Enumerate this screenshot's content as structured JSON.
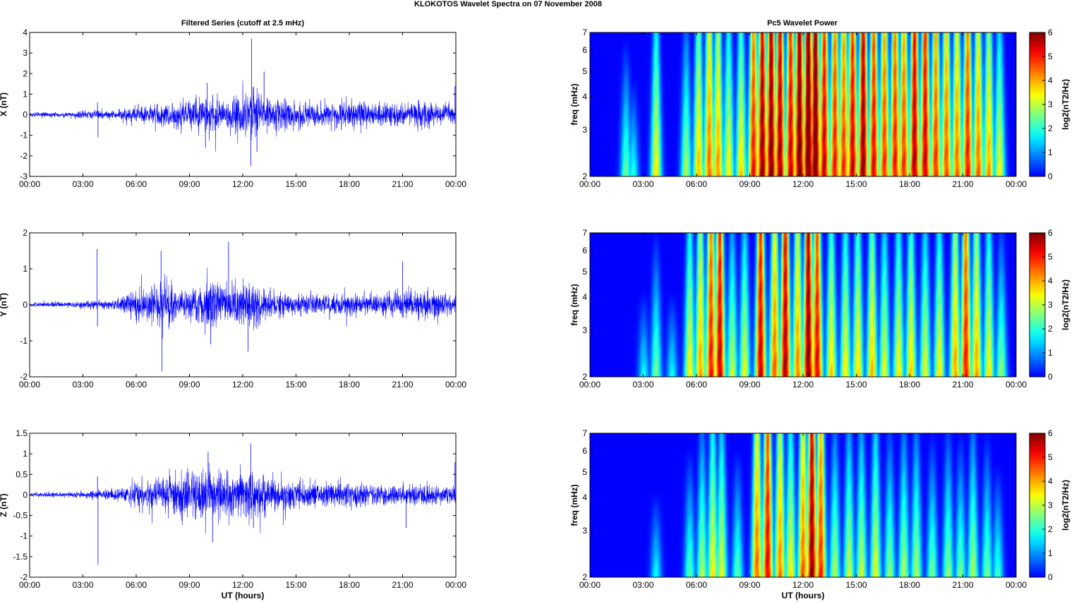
{
  "figure": {
    "title": "KLOKOTOS Wavelet Spectra on 07 November  2008",
    "left_title": "Filtered Series (cutoff at 2.5 mHz)",
    "right_title": "Pc5 Wavelet Power"
  },
  "chart_data": [
    {
      "type": "line",
      "component": "X",
      "ylabel": "X (nT)",
      "xlabel": "",
      "ylim": [
        -3,
        4
      ],
      "yticks": [
        -3,
        -2,
        -1,
        0,
        1,
        2,
        3,
        4
      ],
      "xticks": [
        "00:00",
        "03:00",
        "06:00",
        "09:00",
        "12:00",
        "15:00",
        "18:00",
        "21:00",
        "00:00"
      ],
      "series_color": "#0000ff",
      "envelope_hours": [
        0,
        2,
        3.8,
        4.5,
        6,
        7.5,
        9,
        10,
        11,
        12,
        12.5,
        13.5,
        15,
        16.5,
        18,
        19.5,
        21,
        22,
        23,
        24
      ],
      "envelope_amp": [
        0.1,
        0.1,
        0.2,
        0.15,
        0.35,
        0.5,
        0.7,
        0.9,
        0.6,
        1.0,
        1.3,
        0.7,
        0.55,
        0.5,
        0.55,
        0.5,
        0.45,
        0.6,
        0.45,
        0.4
      ],
      "spikes": [
        {
          "t": 3.82,
          "v": 0.6
        },
        {
          "t": 3.85,
          "v": -1.1
        },
        {
          "t": 10.0,
          "v": 1.55
        },
        {
          "t": 9.9,
          "v": -1.6
        },
        {
          "t": 12.5,
          "v": 3.7
        },
        {
          "t": 12.45,
          "v": -2.5
        },
        {
          "t": 12.8,
          "v": -1.8
        },
        {
          "t": 13.2,
          "v": 2.1
        },
        {
          "t": 23.95,
          "v": 1.4
        }
      ]
    },
    {
      "type": "line",
      "component": "Y",
      "ylabel": "Y (nT)",
      "xlabel": "",
      "ylim": [
        -2,
        2
      ],
      "yticks": [
        -2,
        -1,
        0,
        1,
        2
      ],
      "xticks": [
        "00:00",
        "03:00",
        "06:00",
        "09:00",
        "12:00",
        "15:00",
        "18:00",
        "21:00",
        "00:00"
      ],
      "series_color": "#0000ff",
      "envelope_hours": [
        0,
        2,
        3.8,
        4.5,
        6,
        7,
        7.5,
        8.5,
        10,
        11,
        12,
        12.5,
        13.5,
        15,
        16.5,
        18,
        19.5,
        21,
        22,
        23,
        24
      ],
      "envelope_amp": [
        0.06,
        0.06,
        0.12,
        0.1,
        0.35,
        0.45,
        0.6,
        0.3,
        0.6,
        0.5,
        0.6,
        0.55,
        0.3,
        0.3,
        0.25,
        0.3,
        0.25,
        0.35,
        0.4,
        0.3,
        0.25
      ],
      "spikes": [
        {
          "t": 3.8,
          "v": 1.55
        },
        {
          "t": 3.82,
          "v": -0.6
        },
        {
          "t": 7.4,
          "v": 1.5
        },
        {
          "t": 7.45,
          "v": -1.85
        },
        {
          "t": 11.2,
          "v": 1.75
        },
        {
          "t": 10.2,
          "v": -1.1
        },
        {
          "t": 12.3,
          "v": -1.3
        },
        {
          "t": 21.0,
          "v": 1.2
        }
      ]
    },
    {
      "type": "line",
      "component": "Z",
      "ylabel": "Z (nT)",
      "xlabel": "UT (hours)",
      "ylim": [
        -2,
        1.5
      ],
      "yticks": [
        -2,
        -1.5,
        -1,
        -0.5,
        0,
        0.5,
        1,
        1.5
      ],
      "xticks": [
        "00:00",
        "03:00",
        "06:00",
        "09:00",
        "12:00",
        "15:00",
        "18:00",
        "21:00",
        "00:00"
      ],
      "series_color": "#0000ff",
      "envelope_hours": [
        0,
        2,
        3.8,
        4.5,
        6,
        7.5,
        9,
        10,
        11,
        12,
        12.5,
        13.5,
        15,
        16.5,
        18,
        19.5,
        21,
        22,
        23,
        24
      ],
      "envelope_amp": [
        0.05,
        0.05,
        0.1,
        0.1,
        0.25,
        0.35,
        0.45,
        0.6,
        0.45,
        0.6,
        0.55,
        0.35,
        0.3,
        0.25,
        0.25,
        0.25,
        0.2,
        0.25,
        0.2,
        0.2
      ],
      "spikes": [
        {
          "t": 3.85,
          "v": -1.7
        },
        {
          "t": 3.82,
          "v": 0.45
        },
        {
          "t": 10.05,
          "v": 1.05
        },
        {
          "t": 10.3,
          "v": -1.15
        },
        {
          "t": 12.45,
          "v": 1.25
        },
        {
          "t": 12.6,
          "v": -0.8
        },
        {
          "t": 21.2,
          "v": -0.8
        },
        {
          "t": 23.95,
          "v": 0.8
        }
      ]
    },
    {
      "type": "heatmap",
      "component": "X",
      "ylabel": "freq (mHz)",
      "xlabel": "",
      "yscale": "log",
      "ylim": [
        2,
        7
      ],
      "yticks": [
        2,
        3,
        4,
        5,
        6,
        7
      ],
      "xticks": [
        "00:00",
        "03:00",
        "06:00",
        "09:00",
        "12:00",
        "15:00",
        "18:00",
        "21:00",
        "00:00"
      ],
      "colormap": "jet",
      "colorbar": {
        "label": "log2(nT2/Hz)",
        "clim": [
          0,
          6
        ],
        "ticks": [
          0,
          1,
          2,
          3,
          4,
          5,
          6
        ]
      },
      "bursts": [
        {
          "t": 2.0,
          "p": 2.5
        },
        {
          "t": 2.4,
          "p": 2.0
        },
        {
          "t": 3.7,
          "p": 3.6
        },
        {
          "t": 5.4,
          "p": 3.0
        },
        {
          "t": 6.1,
          "p": 4.0
        },
        {
          "t": 6.7,
          "p": 4.6
        },
        {
          "t": 7.2,
          "p": 4.3
        },
        {
          "t": 7.8,
          "p": 3.6
        },
        {
          "t": 8.5,
          "p": 3.8
        },
        {
          "t": 9.2,
          "p": 5.2
        },
        {
          "t": 9.7,
          "p": 6.0
        },
        {
          "t": 10.2,
          "p": 6.2
        },
        {
          "t": 10.7,
          "p": 5.9
        },
        {
          "t": 11.3,
          "p": 5.6
        },
        {
          "t": 11.8,
          "p": 6.3
        },
        {
          "t": 12.3,
          "p": 6.5
        },
        {
          "t": 12.7,
          "p": 6.4
        },
        {
          "t": 13.2,
          "p": 5.6
        },
        {
          "t": 13.8,
          "p": 5.2
        },
        {
          "t": 14.3,
          "p": 5.0
        },
        {
          "t": 14.8,
          "p": 5.6
        },
        {
          "t": 15.4,
          "p": 6.0
        },
        {
          "t": 16.0,
          "p": 5.4
        },
        {
          "t": 16.6,
          "p": 5.0
        },
        {
          "t": 17.2,
          "p": 5.2
        },
        {
          "t": 17.7,
          "p": 5.0
        },
        {
          "t": 18.3,
          "p": 5.8
        },
        {
          "t": 18.9,
          "p": 5.6
        },
        {
          "t": 19.5,
          "p": 5.0
        },
        {
          "t": 20.1,
          "p": 4.8
        },
        {
          "t": 20.7,
          "p": 4.6
        },
        {
          "t": 21.3,
          "p": 5.2
        },
        {
          "t": 21.9,
          "p": 4.6
        },
        {
          "t": 22.5,
          "p": 4.2
        },
        {
          "t": 23.1,
          "p": 3.5
        }
      ]
    },
    {
      "type": "heatmap",
      "component": "Y",
      "ylabel": "freq (mHz)",
      "xlabel": "",
      "yscale": "log",
      "ylim": [
        2,
        7
      ],
      "yticks": [
        2,
        3,
        4,
        5,
        6,
        7
      ],
      "xticks": [
        "00:00",
        "03:00",
        "06:00",
        "09:00",
        "12:00",
        "15:00",
        "18:00",
        "21:00",
        "00:00"
      ],
      "colormap": "jet",
      "colorbar": {
        "label": "log2(nT2/Hz)",
        "clim": [
          0,
          6
        ],
        "ticks": [
          0,
          1,
          2,
          3,
          4,
          5,
          6
        ]
      },
      "bursts": [
        {
          "t": 3.0,
          "p": 1.8
        },
        {
          "t": 3.7,
          "p": 2.6
        },
        {
          "t": 4.6,
          "p": 1.8
        },
        {
          "t": 5.6,
          "p": 3.6
        },
        {
          "t": 6.2,
          "p": 4.2
        },
        {
          "t": 6.8,
          "p": 5.2
        },
        {
          "t": 7.3,
          "p": 5.6
        },
        {
          "t": 8.0,
          "p": 3.2
        },
        {
          "t": 8.7,
          "p": 3.4
        },
        {
          "t": 9.6,
          "p": 5.6
        },
        {
          "t": 10.4,
          "p": 4.6
        },
        {
          "t": 11.0,
          "p": 5.8
        },
        {
          "t": 11.7,
          "p": 4.4
        },
        {
          "t": 12.3,
          "p": 6.1
        },
        {
          "t": 12.8,
          "p": 5.4
        },
        {
          "t": 13.6,
          "p": 3.8
        },
        {
          "t": 14.4,
          "p": 3.6
        },
        {
          "t": 15.1,
          "p": 3.8
        },
        {
          "t": 15.9,
          "p": 4.0
        },
        {
          "t": 16.6,
          "p": 3.4
        },
        {
          "t": 17.4,
          "p": 3.6
        },
        {
          "t": 18.1,
          "p": 3.8
        },
        {
          "t": 18.9,
          "p": 3.4
        },
        {
          "t": 19.7,
          "p": 3.6
        },
        {
          "t": 20.6,
          "p": 4.2
        },
        {
          "t": 21.2,
          "p": 5.2
        },
        {
          "t": 21.8,
          "p": 4.2
        },
        {
          "t": 22.5,
          "p": 3.6
        },
        {
          "t": 23.2,
          "p": 2.8
        }
      ]
    },
    {
      "type": "heatmap",
      "component": "Z",
      "ylabel": "freq (mHz)",
      "xlabel": "UT (hours)",
      "yscale": "log",
      "ylim": [
        2,
        7
      ],
      "yticks": [
        2,
        3,
        4,
        5,
        6,
        7
      ],
      "xticks": [
        "00:00",
        "03:00",
        "06:00",
        "09:00",
        "12:00",
        "15:00",
        "18:00",
        "21:00",
        "00:00"
      ],
      "colormap": "jet",
      "colorbar": {
        "label": "log2(nT2/Hz)",
        "clim": [
          0,
          6
        ],
        "ticks": [
          0,
          1,
          2,
          3,
          4,
          5,
          6
        ]
      },
      "bursts": [
        {
          "t": 3.7,
          "p": 1.8
        },
        {
          "t": 5.6,
          "p": 2.4
        },
        {
          "t": 6.3,
          "p": 3.0
        },
        {
          "t": 6.9,
          "p": 3.6
        },
        {
          "t": 7.4,
          "p": 3.4
        },
        {
          "t": 8.3,
          "p": 2.4
        },
        {
          "t": 9.4,
          "p": 4.6
        },
        {
          "t": 10.0,
          "p": 5.4
        },
        {
          "t": 10.7,
          "p": 4.4
        },
        {
          "t": 11.3,
          "p": 3.6
        },
        {
          "t": 12.0,
          "p": 4.6
        },
        {
          "t": 12.5,
          "p": 6.0
        },
        {
          "t": 13.0,
          "p": 5.0
        },
        {
          "t": 13.8,
          "p": 3.0
        },
        {
          "t": 14.6,
          "p": 3.2
        },
        {
          "t": 15.3,
          "p": 3.2
        },
        {
          "t": 16.1,
          "p": 3.4
        },
        {
          "t": 16.9,
          "p": 2.8
        },
        {
          "t": 17.7,
          "p": 3.0
        },
        {
          "t": 18.4,
          "p": 3.0
        },
        {
          "t": 19.3,
          "p": 2.6
        },
        {
          "t": 20.2,
          "p": 2.8
        },
        {
          "t": 20.9,
          "p": 2.6
        },
        {
          "t": 21.6,
          "p": 3.0
        },
        {
          "t": 22.4,
          "p": 2.6
        },
        {
          "t": 23.0,
          "p": 2.2
        }
      ]
    }
  ]
}
